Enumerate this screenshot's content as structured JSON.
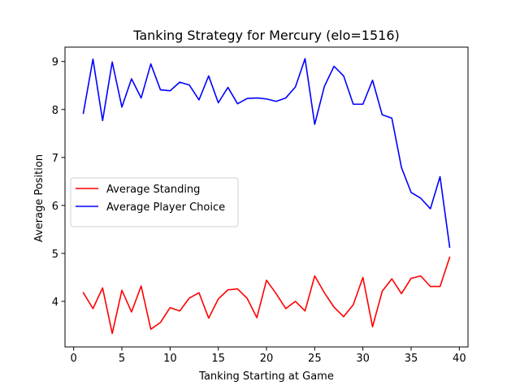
{
  "chart_data": {
    "type": "line",
    "title": "Tanking Strategy for Mercury (elo=1516)",
    "xlabel": "Tanking Starting at Game",
    "ylabel": "Average Position",
    "xlim": [
      -0.9,
      40.9
    ],
    "ylim": [
      3.05,
      9.3
    ],
    "xticks": [
      0,
      5,
      10,
      15,
      20,
      25,
      30,
      35,
      40
    ],
    "yticks": [
      4,
      5,
      6,
      7,
      8,
      9
    ],
    "grid": false,
    "legend_placement": "center-left",
    "x": [
      1,
      2,
      3,
      4,
      5,
      6,
      7,
      8,
      9,
      10,
      11,
      12,
      13,
      14,
      15,
      16,
      17,
      18,
      19,
      20,
      21,
      22,
      23,
      24,
      25,
      26,
      27,
      28,
      29,
      30,
      31,
      32,
      33,
      34,
      35,
      36,
      37,
      38,
      39
    ],
    "series": [
      {
        "name": "Average Standing",
        "color": "#ff0000",
        "values": [
          4.18,
          3.85,
          4.28,
          3.33,
          4.23,
          3.78,
          4.32,
          3.42,
          3.56,
          3.87,
          3.8,
          4.07,
          4.18,
          3.65,
          4.05,
          4.24,
          4.26,
          4.06,
          3.66,
          4.44,
          4.16,
          3.85,
          4.0,
          3.8,
          4.53,
          4.18,
          3.88,
          3.68,
          3.93,
          4.5,
          3.47,
          4.21,
          4.47,
          4.16,
          4.48,
          4.53,
          4.31,
          4.31,
          4.92
        ]
      },
      {
        "name": "Average Player Choice",
        "color": "#0000ff",
        "values": [
          7.92,
          9.05,
          7.77,
          8.99,
          8.05,
          8.64,
          8.24,
          8.95,
          8.41,
          8.39,
          8.57,
          8.51,
          8.2,
          8.7,
          8.14,
          8.46,
          8.12,
          8.23,
          8.24,
          8.22,
          8.17,
          8.24,
          8.47,
          9.06,
          7.69,
          8.48,
          8.9,
          8.7,
          8.11,
          8.11,
          8.61,
          7.89,
          7.82,
          6.79,
          6.27,
          6.15,
          5.93,
          6.6,
          5.13
        ]
      }
    ]
  }
}
